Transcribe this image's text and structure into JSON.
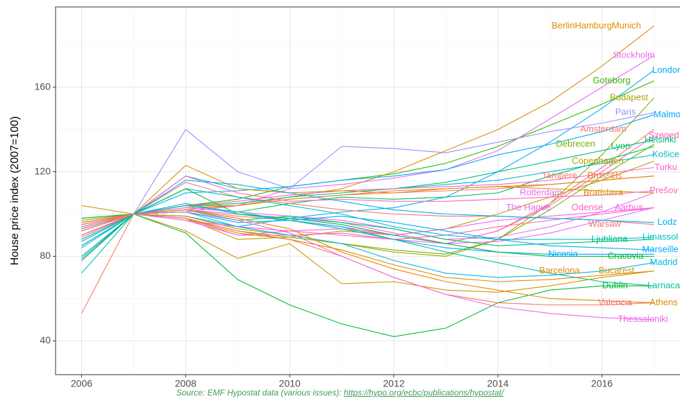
{
  "chart_data": {
    "type": "line",
    "y_label": "House price index (2007=100)",
    "source": "Source: EMF Hypostat data (various issues):",
    "source_url": "https://hypo.org/ecbc/publications/hypostat/",
    "x": [
      2006,
      2007,
      2008,
      2009,
      2010,
      2011,
      2012,
      2013,
      2014,
      2015,
      2016,
      2017
    ],
    "xlim": [
      2005.5,
      2017.5
    ],
    "xticks": [
      2006,
      2008,
      2010,
      2012,
      2014,
      2016
    ],
    "xminor": [
      2007,
      2009,
      2011,
      2013,
      2015,
      2017
    ],
    "ylim": [
      24,
      198
    ],
    "yticks": [
      40,
      80,
      120,
      160
    ],
    "yminor": [
      60,
      100,
      140,
      180
    ],
    "grid": true,
    "series": [
      {
        "name": "BerlinHamburgMunich",
        "color": "#d89000",
        "values": [
          96,
          100,
          103,
          104,
          108,
          112,
          120,
          130,
          140,
          153,
          170,
          189
        ]
      },
      {
        "name": "Stockholm",
        "color": "#e76bf3",
        "values": [
          92,
          100,
          101,
          104,
          112,
          114,
          117,
          121,
          130,
          145,
          160,
          175
        ]
      },
      {
        "name": "London",
        "color": "#00b0f6",
        "values": [
          95,
          100,
          99,
          94,
          98,
          101,
          103,
          108,
          120,
          134,
          150,
          168
        ]
      },
      {
        "name": "Goteborg",
        "color": "#39b600",
        "values": [
          90,
          100,
          104,
          107,
          113,
          116,
          119,
          124,
          132,
          142,
          152,
          163
        ]
      },
      {
        "name": "Budapest",
        "color": "#a3a500",
        "values": [
          97,
          100,
          99,
          93,
          90,
          86,
          82,
          80,
          88,
          105,
          128,
          155
        ]
      },
      {
        "name": "Paris",
        "color": "#9590ff",
        "values": [
          90,
          100,
          140,
          120,
          112,
          132,
          131,
          129,
          134,
          139,
          143,
          148
        ]
      },
      {
        "name": "Malmo",
        "color": "#00a9ff",
        "values": [
          87,
          100,
          110,
          111,
          113,
          116,
          118,
          121,
          128,
          133,
          139,
          147
        ]
      },
      {
        "name": "Amsterdam",
        "color": "#f8766d",
        "values": [
          92,
          100,
          102,
          99,
          97,
          94,
          90,
          86,
          92,
          105,
          122,
          140
        ]
      },
      {
        "name": "Szeged",
        "color": "#ff62bc",
        "values": [
          96,
          100,
          97,
          94,
          92,
          90,
          88,
          86,
          92,
          104,
          120,
          137
        ]
      },
      {
        "name": "Debrecen",
        "color": "#72b000",
        "values": [
          98,
          100,
          98,
          92,
          89,
          86,
          83,
          81,
          88,
          102,
          118,
          133
        ]
      },
      {
        "name": "Lyon",
        "color": "#00bd5c",
        "values": [
          92,
          100,
          104,
          101,
          105,
          108,
          107,
          108,
          110,
          118,
          125,
          132
        ]
      },
      {
        "name": "Helsinki",
        "color": "#00bf7d",
        "values": [
          88,
          100,
          104,
          105,
          108,
          110,
          112,
          115,
          120,
          125,
          130,
          135
        ]
      },
      {
        "name": "Košice",
        "color": "#00bfc4",
        "values": [
          85,
          100,
          118,
          112,
          110,
          111,
          112,
          114,
          116,
          120,
          124,
          128
        ]
      },
      {
        "name": "Copenhagen",
        "color": "#b79f00",
        "values": [
          95,
          100,
          98,
          88,
          89,
          92,
          90,
          93,
          100,
          108,
          116,
          125
        ]
      },
      {
        "name": "Turku",
        "color": "#fd61d1",
        "values": [
          89,
          100,
          104,
          106,
          109,
          111,
          112,
          113,
          114,
          116,
          119,
          122
        ]
      },
      {
        "name": "Tampere",
        "color": "#f8766d",
        "values": [
          90,
          100,
          102,
          104,
          107,
          109,
          110,
          111,
          112,
          114,
          116,
          118
        ]
      },
      {
        "name": "Brussels",
        "color": "#e7861b",
        "values": [
          90,
          100,
          104,
          104,
          107,
          109,
          111,
          112,
          113,
          114,
          116,
          118
        ]
      },
      {
        "name": "Rotterdam",
        "color": "#e76bf3",
        "values": [
          94,
          100,
          103,
          101,
          99,
          97,
          93,
          88,
          89,
          94,
          101,
          110
        ]
      },
      {
        "name": "Bratislava",
        "color": "#d89000",
        "values": [
          80,
          100,
          123,
          112,
          110,
          111,
          110,
          112,
          113,
          112,
          111,
          110
        ]
      },
      {
        "name": "Prešov",
        "color": "#ff62bc",
        "values": [
          78,
          100,
          118,
          110,
          106,
          107,
          106,
          106,
          107,
          108,
          109,
          111
        ]
      },
      {
        "name": "The Hague",
        "color": "#e76bf3",
        "values": [
          95,
          100,
          102,
          100,
          98,
          96,
          91,
          86,
          87,
          91,
          97,
          103
        ]
      },
      {
        "name": "Odense",
        "color": "#ff62bc",
        "values": [
          93,
          100,
          98,
          90,
          90,
          91,
          88,
          90,
          94,
          97,
          100,
          103
        ]
      },
      {
        "name": "Aarhus",
        "color": "#f564e3",
        "values": [
          92,
          100,
          97,
          90,
          92,
          93,
          90,
          93,
          97,
          99,
          101,
          103
        ]
      },
      {
        "name": "Warsaw",
        "color": "#f8766d",
        "values": [
          53,
          100,
          115,
          108,
          105,
          102,
          100,
          99,
          99,
          98,
          97,
          95
        ]
      },
      {
        "name": "Lodz",
        "color": "#00b0f6",
        "values": [
          84,
          100,
          116,
          114,
          110,
          106,
          102,
          100,
          99,
          98,
          97,
          96
        ]
      },
      {
        "name": "Ljubliana",
        "color": "#00bf7d",
        "values": [
          85,
          100,
          102,
          97,
          99,
          96,
          93,
          88,
          85,
          86,
          87,
          88
        ]
      },
      {
        "name": "Limassol",
        "color": "#00bfc4",
        "values": [
          72,
          100,
          112,
          108,
          104,
          100,
          94,
          90,
          88,
          88,
          88,
          89
        ]
      },
      {
        "name": "Nicosia",
        "color": "#00a9ff",
        "values": [
          79,
          100,
          105,
          100,
          97,
          94,
          88,
          84,
          82,
          81,
          81,
          81
        ]
      },
      {
        "name": "Cracovia",
        "color": "#00ba38",
        "values": [
          78,
          100,
          112,
          100,
          98,
          95,
          90,
          86,
          82,
          80,
          80,
          80
        ]
      },
      {
        "name": "Marseille",
        "color": "#00abfd",
        "values": [
          94,
          100,
          101,
          96,
          97,
          99,
          96,
          92,
          88,
          85,
          84,
          83
        ]
      },
      {
        "name": "Madrid",
        "color": "#00b8e7",
        "values": [
          93,
          100,
          101,
          94,
          90,
          86,
          78,
          72,
          70,
          71,
          73,
          77
        ]
      },
      {
        "name": "Barcelona",
        "color": "#e58700",
        "values": [
          93,
          100,
          98,
          91,
          88,
          83,
          76,
          70,
          68,
          69,
          71,
          73
        ]
      },
      {
        "name": "Bucarest",
        "color": "#c99800",
        "values": [
          104,
          100,
          92,
          79,
          86,
          67,
          68,
          64,
          63,
          66,
          70,
          73
        ]
      },
      {
        "name": "Dublin",
        "color": "#00ba38",
        "values": [
          98,
          100,
          91,
          69,
          57,
          48,
          42,
          46,
          58,
          64,
          66,
          66
        ]
      },
      {
        "name": "Larnaca",
        "color": "#00c1a3",
        "values": [
          80,
          100,
          104,
          101,
          97,
          93,
          88,
          82,
          77,
          72,
          68,
          66
        ]
      },
      {
        "name": "Valencia",
        "color": "#f8766d",
        "values": [
          95,
          100,
          98,
          92,
          88,
          80,
          70,
          62,
          58,
          57,
          57,
          58
        ]
      },
      {
        "name": "Athens",
        "color": "#e38900",
        "values": [
          96,
          100,
          102,
          98,
          93,
          82,
          74,
          68,
          64,
          60,
          59,
          58
        ]
      },
      {
        "name": "Thessaloniki",
        "color": "#f265e7",
        "values": [
          94,
          100,
          101,
          97,
          91,
          80,
          70,
          62,
          56,
          53,
          51,
          50
        ]
      }
    ]
  }
}
